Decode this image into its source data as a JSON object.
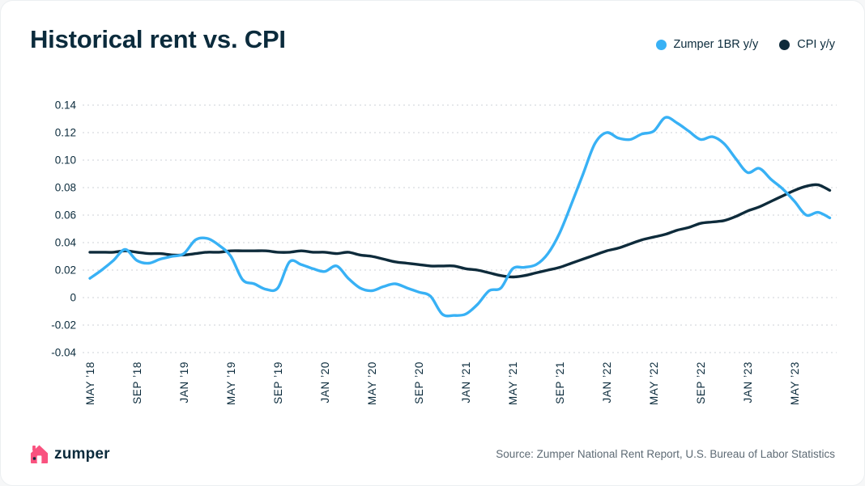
{
  "header": {
    "title": "Historical rent vs. CPI"
  },
  "legend": [
    {
      "label": "Zumper 1BR y/y",
      "color": "#38b1f5"
    },
    {
      "label": "CPI y/y",
      "color": "#0e2b3b"
    }
  ],
  "footer": {
    "brand": "zumper",
    "source": "Source: Zumper National Rent Report, U.S. Bureau of Labor Statistics"
  },
  "brand_colors": {
    "pink": "#f9527f",
    "navy": "#0b2b3c",
    "blue": "#38b1f5"
  },
  "chart_data": {
    "type": "line",
    "title": "Historical rent vs. CPI",
    "x_start": "2018-05",
    "x_end": "2023-08",
    "x_frequency": "monthly",
    "x_tick_labels": [
      "MAY ’18",
      "SEP ’18",
      "JAN ’19",
      "MAY ’19",
      "SEP ’19",
      "JAN ’20",
      "MAY ’20",
      "SEP ’20",
      "JAN ’21",
      "MAY ’21",
      "SEP ’21",
      "JAN ’22",
      "MAY ’22",
      "SEP ’22",
      "JAN ’23",
      "MAY ’23"
    ],
    "x_tick_positions": [
      0,
      4,
      8,
      12,
      16,
      20,
      24,
      28,
      32,
      36,
      40,
      44,
      48,
      52,
      56,
      60
    ],
    "y_ticks": [
      0.14,
      0.12,
      0.1,
      0.08,
      0.06,
      0.04,
      0.02,
      0,
      -0.02,
      -0.04
    ],
    "ylim": [
      -0.04,
      0.14
    ],
    "grid": "dotted-horizontal",
    "legend_position": "top-right",
    "series": [
      {
        "name": "Zumper 1BR y/y",
        "color": "#38b1f5",
        "values": [
          0.014,
          0.02,
          0.027,
          0.035,
          0.027,
          0.025,
          0.028,
          0.03,
          0.032,
          0.042,
          0.043,
          0.038,
          0.03,
          0.013,
          0.01,
          0.006,
          0.007,
          0.026,
          0.024,
          0.021,
          0.019,
          0.023,
          0.014,
          0.007,
          0.005,
          0.008,
          0.01,
          0.007,
          0.004,
          0.001,
          -0.012,
          -0.013,
          -0.012,
          -0.005,
          0.005,
          0.007,
          0.021,
          0.022,
          0.024,
          0.032,
          0.047,
          0.068,
          0.09,
          0.112,
          0.12,
          0.116,
          0.115,
          0.119,
          0.121,
          0.131,
          0.127,
          0.121,
          0.115,
          0.117,
          0.112,
          0.101,
          0.091,
          0.094,
          0.086,
          0.079,
          0.07,
          0.06,
          0.062,
          0.058
        ]
      },
      {
        "name": "CPI y/y",
        "color": "#0e2b3b",
        "values": [
          0.033,
          0.033,
          0.033,
          0.034,
          0.033,
          0.032,
          0.032,
          0.031,
          0.031,
          0.032,
          0.033,
          0.033,
          0.034,
          0.034,
          0.034,
          0.034,
          0.033,
          0.033,
          0.034,
          0.033,
          0.033,
          0.032,
          0.033,
          0.031,
          0.03,
          0.028,
          0.026,
          0.025,
          0.024,
          0.023,
          0.023,
          0.023,
          0.021,
          0.02,
          0.018,
          0.016,
          0.015,
          0.016,
          0.018,
          0.02,
          0.022,
          0.025,
          0.028,
          0.031,
          0.034,
          0.036,
          0.039,
          0.042,
          0.044,
          0.046,
          0.049,
          0.051,
          0.054,
          0.055,
          0.056,
          0.059,
          0.063,
          0.066,
          0.07,
          0.074,
          0.078,
          0.081,
          0.082,
          0.078
        ]
      }
    ]
  }
}
